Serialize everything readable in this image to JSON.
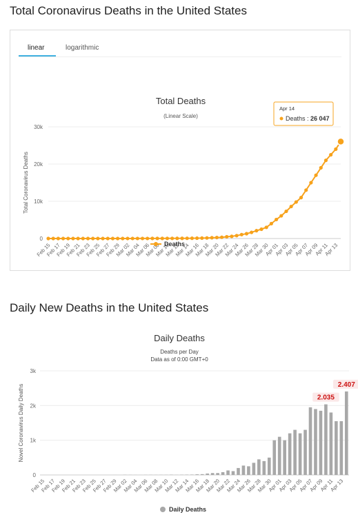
{
  "section1": {
    "heading": "Total Coronavirus Deaths in the United States",
    "tabs": [
      "linear",
      "logarithmic"
    ],
    "active_tab": "linear"
  },
  "section2": {
    "heading": "Daily New Deaths in the United States"
  },
  "colors": {
    "line": "#f7a21b",
    "bar": "#a8a8a8",
    "label_red": "#cc1111",
    "tab_accent": "#3fb0e0"
  },
  "chart_data": [
    {
      "type": "line",
      "title": "Total Deaths",
      "subtitle": "(Linear Scale)",
      "ylabel": "Total Coronavirus Deaths",
      "xlabel": "",
      "ylim": [
        0,
        30000
      ],
      "yticks": [
        0,
        10000,
        20000,
        30000
      ],
      "ytick_labels": [
        "0",
        "10k",
        "20k",
        "30k"
      ],
      "x": [
        "Feb 15",
        "Feb 16",
        "Feb 17",
        "Feb 18",
        "Feb 19",
        "Feb 20",
        "Feb 21",
        "Feb 22",
        "Feb 23",
        "Feb 24",
        "Feb 25",
        "Feb 26",
        "Feb 27",
        "Feb 28",
        "Feb 29",
        "Mar 01",
        "Mar 02",
        "Mar 03",
        "Mar 04",
        "Mar 05",
        "Mar 06",
        "Mar 07",
        "Mar 08",
        "Mar 09",
        "Mar 10",
        "Mar 11",
        "Mar 12",
        "Mar 13",
        "Mar 14",
        "Mar 15",
        "Mar 16",
        "Mar 17",
        "Mar 18",
        "Mar 19",
        "Mar 20",
        "Mar 21",
        "Mar 22",
        "Mar 23",
        "Mar 24",
        "Mar 25",
        "Mar 26",
        "Mar 27",
        "Mar 28",
        "Mar 29",
        "Mar 30",
        "Mar 31",
        "Apr 01",
        "Apr 02",
        "Apr 03",
        "Apr 04",
        "Apr 05",
        "Apr 06",
        "Apr 07",
        "Apr 08",
        "Apr 09",
        "Apr 10",
        "Apr 11",
        "Apr 12",
        "Apr 13",
        "Apr 14"
      ],
      "xtick_labels": [
        "Feb 15",
        "Feb 17",
        "Feb 19",
        "Feb 21",
        "Feb 23",
        "Feb 25",
        "Feb 27",
        "Feb 29",
        "Mar 02",
        "Mar 04",
        "Mar 06",
        "Mar 08",
        "Mar 10",
        "Mar 12",
        "Mar 14",
        "Mar 16",
        "Mar 18",
        "Mar 20",
        "Mar 22",
        "Mar 24",
        "Mar 26",
        "Mar 28",
        "Mar 30",
        "Apr 01",
        "Apr 03",
        "Apr 05",
        "Apr 07",
        "Apr 09",
        "Apr 11",
        "Apr 13"
      ],
      "series": [
        {
          "name": "Deaths",
          "values": [
            0,
            0,
            0,
            0,
            0,
            0,
            0,
            0,
            0,
            0,
            0,
            0,
            0,
            0,
            1,
            1,
            6,
            9,
            11,
            12,
            15,
            19,
            22,
            26,
            30,
            38,
            41,
            48,
            57,
            68,
            86,
            109,
            150,
            205,
            260,
            340,
            470,
            580,
            780,
            1050,
            1300,
            1650,
            2100,
            2500,
            3000,
            4000,
            5100,
            6100,
            7300,
            8600,
            9800,
            11000,
            13000,
            15000,
            17000,
            19000,
            21000,
            22500,
            24000,
            26047
          ]
        }
      ],
      "tooltip": {
        "label": "Apr 14",
        "series": "Deaths",
        "value": "26 047"
      },
      "legend": "bottom-center",
      "grid": true
    },
    {
      "type": "bar",
      "title": "Daily Deaths",
      "subtitle_lines": [
        "Deaths per Day",
        "Data as of 0:00 GMT+0"
      ],
      "ylabel": "Novel Coronavirus Daily Deaths",
      "xlabel": "",
      "ylim": [
        0,
        3000
      ],
      "yticks": [
        0,
        1000,
        2000,
        3000
      ],
      "ytick_labels": [
        "0",
        "1k",
        "2k",
        "3k"
      ],
      "x": [
        "Feb 15",
        "Feb 16",
        "Feb 17",
        "Feb 18",
        "Feb 19",
        "Feb 20",
        "Feb 21",
        "Feb 22",
        "Feb 23",
        "Feb 24",
        "Feb 25",
        "Feb 26",
        "Feb 27",
        "Feb 28",
        "Feb 29",
        "Mar 01",
        "Mar 02",
        "Mar 03",
        "Mar 04",
        "Mar 05",
        "Mar 06",
        "Mar 07",
        "Mar 08",
        "Mar 09",
        "Mar 10",
        "Mar 11",
        "Mar 12",
        "Mar 13",
        "Mar 14",
        "Mar 15",
        "Mar 16",
        "Mar 17",
        "Mar 18",
        "Mar 19",
        "Mar 20",
        "Mar 21",
        "Mar 22",
        "Mar 23",
        "Mar 24",
        "Mar 25",
        "Mar 26",
        "Mar 27",
        "Mar 28",
        "Mar 29",
        "Mar 30",
        "Mar 31",
        "Apr 01",
        "Apr 02",
        "Apr 03",
        "Apr 04",
        "Apr 05",
        "Apr 06",
        "Apr 07",
        "Apr 08",
        "Apr 09",
        "Apr 10",
        "Apr 11",
        "Apr 12",
        "Apr 13",
        "Apr 14"
      ],
      "xtick_labels": [
        "Feb 15",
        "Feb 17",
        "Feb 19",
        "Feb 21",
        "Feb 23",
        "Feb 25",
        "Feb 27",
        "Feb 29",
        "Mar 02",
        "Mar 04",
        "Mar 06",
        "Mar 08",
        "Mar 10",
        "Mar 12",
        "Mar 14",
        "Mar 16",
        "Mar 18",
        "Mar 20",
        "Mar 22",
        "Mar 24",
        "Mar 26",
        "Mar 28",
        "Mar 30",
        "Apr 01",
        "Apr 03",
        "Apr 05",
        "Apr 07",
        "Apr 09",
        "Apr 11",
        "Apr 13"
      ],
      "series": [
        {
          "name": "Daily Deaths",
          "values": [
            0,
            0,
            0,
            0,
            0,
            0,
            0,
            0,
            0,
            0,
            0,
            0,
            0,
            0,
            1,
            0,
            5,
            3,
            2,
            1,
            3,
            4,
            3,
            4,
            4,
            8,
            3,
            7,
            9,
            11,
            18,
            23,
            41,
            55,
            55,
            80,
            130,
            110,
            200,
            270,
            250,
            350,
            450,
            400,
            500,
            1000,
            1100,
            1000,
            1200,
            1300,
            1200,
            1300,
            1950,
            1900,
            1850,
            2035,
            1800,
            1550,
            1550,
            2407
          ]
        }
      ],
      "annotations": [
        {
          "x": "Apr 10",
          "value": 2035,
          "label": "2.035"
        },
        {
          "x": "Apr 14",
          "value": 2407,
          "label": "2.407"
        }
      ],
      "legend": "bottom-center",
      "grid": true
    }
  ]
}
